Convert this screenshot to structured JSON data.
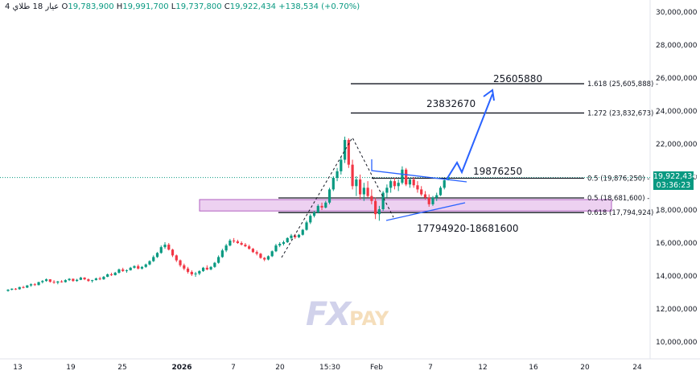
{
  "header": {
    "title": "4 عيار 18 طلاي",
    "open_label": "O",
    "open": "19,783,900",
    "high_label": "H",
    "high": "19,991,700",
    "low_label": "L",
    "low": "19,737,800",
    "close_label": "C",
    "close": "19,922,434",
    "change": "+138,534 (+0.70%)"
  },
  "price_tag": {
    "price": "19,922,434",
    "countdown": "03:36:23"
  },
  "watermark": {
    "fx": "FX",
    "pay": "PAY"
  },
  "colors": {
    "up": "#089981",
    "down": "#f23645",
    "projection": "#2962ff",
    "zone": "#e8c6ee",
    "zone_border": "#b05fc0"
  },
  "chart_data": {
    "type": "candlestick",
    "x_ticks": [
      "13",
      "19",
      "25",
      "2026",
      "7",
      "20",
      "15:30",
      "Feb",
      "7",
      "12",
      "16",
      "20",
      "24"
    ],
    "y_ticks": [
      "30,000,000",
      "28,000,000",
      "26,000,000",
      "24,000,000",
      "22,000,000",
      "20,000,000",
      "18,000,000",
      "16,000,000",
      "14,000,000",
      "12,000,000",
      "10,000,000"
    ],
    "ylim": [
      9000000,
      30500000
    ],
    "candles": [
      [
        13050000,
        13150000,
        13000000,
        13120000
      ],
      [
        13120000,
        13200000,
        13080000,
        13180000
      ],
      [
        13180000,
        13220000,
        13100000,
        13150000
      ],
      [
        13150000,
        13300000,
        13120000,
        13280000
      ],
      [
        13280000,
        13350000,
        13200000,
        13250000
      ],
      [
        13250000,
        13400000,
        13220000,
        13380000
      ],
      [
        13380000,
        13500000,
        13300000,
        13450000
      ],
      [
        13450000,
        13520000,
        13350000,
        13400000
      ],
      [
        13400000,
        13600000,
        13380000,
        13580000
      ],
      [
        13580000,
        13700000,
        13500000,
        13650000
      ],
      [
        13650000,
        13800000,
        13600000,
        13750000
      ],
      [
        13750000,
        13760000,
        13550000,
        13600000
      ],
      [
        13600000,
        13700000,
        13480000,
        13550000
      ],
      [
        13550000,
        13650000,
        13450000,
        13620000
      ],
      [
        13620000,
        13700000,
        13550000,
        13580000
      ],
      [
        13580000,
        13750000,
        13550000,
        13700000
      ],
      [
        13700000,
        13820000,
        13650000,
        13780000
      ],
      [
        13780000,
        13800000,
        13600000,
        13650000
      ],
      [
        13650000,
        13780000,
        13600000,
        13720000
      ],
      [
        13720000,
        13900000,
        13700000,
        13850000
      ],
      [
        13850000,
        13880000,
        13700000,
        13750000
      ],
      [
        13750000,
        13800000,
        13600000,
        13650000
      ],
      [
        13650000,
        13720000,
        13550000,
        13700000
      ],
      [
        13700000,
        13850000,
        13680000,
        13800000
      ],
      [
        13800000,
        13900000,
        13700000,
        13750000
      ],
      [
        13750000,
        13950000,
        13720000,
        13900000
      ],
      [
        13900000,
        14100000,
        13880000,
        14050000
      ],
      [
        14050000,
        14150000,
        13950000,
        14000000
      ],
      [
        14000000,
        14200000,
        13980000,
        14150000
      ],
      [
        14150000,
        14400000,
        14100000,
        14350000
      ],
      [
        14350000,
        14450000,
        14200000,
        14250000
      ],
      [
        14250000,
        14350000,
        14150000,
        14300000
      ],
      [
        14300000,
        14500000,
        14280000,
        14450000
      ],
      [
        14450000,
        14600000,
        14400000,
        14550000
      ],
      [
        14550000,
        14650000,
        14350000,
        14400000
      ],
      [
        14400000,
        14550000,
        14350000,
        14500000
      ],
      [
        14500000,
        14700000,
        14450000,
        14650000
      ],
      [
        14650000,
        14900000,
        14600000,
        14850000
      ],
      [
        14850000,
        15200000,
        14800000,
        15100000
      ],
      [
        15100000,
        15400000,
        15050000,
        15350000
      ],
      [
        15350000,
        15800000,
        15300000,
        15700000
      ],
      [
        15700000,
        16000000,
        15600000,
        15850000
      ],
      [
        15850000,
        15950000,
        15500000,
        15550000
      ],
      [
        15550000,
        15600000,
        15100000,
        15200000
      ],
      [
        15200000,
        15250000,
        14800000,
        14900000
      ],
      [
        14900000,
        14950000,
        14500000,
        14600000
      ],
      [
        14600000,
        14700000,
        14300000,
        14400000
      ],
      [
        14400000,
        14500000,
        14100000,
        14200000
      ],
      [
        14200000,
        14300000,
        13950000,
        14050000
      ],
      [
        14050000,
        14200000,
        13900000,
        14100000
      ],
      [
        14100000,
        14300000,
        14000000,
        14250000
      ],
      [
        14250000,
        14500000,
        14200000,
        14450000
      ],
      [
        14450000,
        14600000,
        14300000,
        14350000
      ],
      [
        14350000,
        14550000,
        14300000,
        14500000
      ],
      [
        14500000,
        14800000,
        14450000,
        14750000
      ],
      [
        14750000,
        15200000,
        14700000,
        15100000
      ],
      [
        15100000,
        15600000,
        15050000,
        15500000
      ],
      [
        15500000,
        15900000,
        15400000,
        15800000
      ],
      [
        15800000,
        16200000,
        15750000,
        16100000
      ],
      [
        16100000,
        16250000,
        15950000,
        16050000
      ],
      [
        16050000,
        16150000,
        15900000,
        15950000
      ],
      [
        15950000,
        16050000,
        15800000,
        15850000
      ],
      [
        15850000,
        15950000,
        15700000,
        15750000
      ],
      [
        15750000,
        15850000,
        15550000,
        15600000
      ],
      [
        15600000,
        15650000,
        15350000,
        15400000
      ],
      [
        15400000,
        15500000,
        15200000,
        15300000
      ],
      [
        15300000,
        15350000,
        15000000,
        15050000
      ],
      [
        15050000,
        15100000,
        14850000,
        14950000
      ],
      [
        14950000,
        15200000,
        14900000,
        15150000
      ],
      [
        15150000,
        15500000,
        15100000,
        15450000
      ],
      [
        15450000,
        15900000,
        15400000,
        15800000
      ],
      [
        15800000,
        16000000,
        15700000,
        15900000
      ],
      [
        15900000,
        16100000,
        15800000,
        16000000
      ],
      [
        16000000,
        16300000,
        15950000,
        16250000
      ],
      [
        16250000,
        16500000,
        16150000,
        16400000
      ],
      [
        16400000,
        16500000,
        16200000,
        16300000
      ],
      [
        16300000,
        16500000,
        16250000,
        16450000
      ],
      [
        16450000,
        16800000,
        16400000,
        16750000
      ],
      [
        16750000,
        17300000,
        16700000,
        17200000
      ],
      [
        17200000,
        17700000,
        17100000,
        17600000
      ],
      [
        17600000,
        17900000,
        17500000,
        17800000
      ],
      [
        17800000,
        18300000,
        17750000,
        18200000
      ],
      [
        18200000,
        18400000,
        17950000,
        18100000
      ],
      [
        18100000,
        18500000,
        18050000,
        18400000
      ],
      [
        18400000,
        19300000,
        18300000,
        19200000
      ],
      [
        19200000,
        20000000,
        19100000,
        19900000
      ],
      [
        19900000,
        20500000,
        19700000,
        20300000
      ],
      [
        20300000,
        21200000,
        20100000,
        21000000
      ],
      [
        21000000,
        22400000,
        20800000,
        22200000
      ],
      [
        22200000,
        22300000,
        20500000,
        20700000
      ],
      [
        20700000,
        21000000,
        19200000,
        19400000
      ],
      [
        19400000,
        20000000,
        18800000,
        19800000
      ],
      [
        19800000,
        20100000,
        18600000,
        18900000
      ],
      [
        18900000,
        19600000,
        18500000,
        19300000
      ],
      [
        19300000,
        19700000,
        18700000,
        18800000
      ],
      [
        18800000,
        19200000,
        18300000,
        18500000
      ],
      [
        18500000,
        18700000,
        17400000,
        17700000
      ],
      [
        17700000,
        18200000,
        17300000,
        18000000
      ],
      [
        18000000,
        19100000,
        17900000,
        19000000
      ],
      [
        19000000,
        19500000,
        18700000,
        19300000
      ],
      [
        19300000,
        19800000,
        19000000,
        19700000
      ],
      [
        19700000,
        19900000,
        19200000,
        19400000
      ],
      [
        19400000,
        19800000,
        19100000,
        19600000
      ],
      [
        19600000,
        20600000,
        19500000,
        20400000
      ],
      [
        20400000,
        20500000,
        19400000,
        19500000
      ],
      [
        19500000,
        19900000,
        19300000,
        19800000
      ],
      [
        19800000,
        19950000,
        19300000,
        19450000
      ],
      [
        19450000,
        19700000,
        19000000,
        19200000
      ],
      [
        19200000,
        19400000,
        18800000,
        18900000
      ],
      [
        18900000,
        19100000,
        18600000,
        18700000
      ],
      [
        18700000,
        18900000,
        18150000,
        18300000
      ],
      [
        18300000,
        18800000,
        18200000,
        18700000
      ],
      [
        18700000,
        19000000,
        18500000,
        18850000
      ],
      [
        18850000,
        19400000,
        18800000,
        19300000
      ],
      [
        19300000,
        19800000,
        19200000,
        19750000
      ],
      [
        19783900,
        19991700,
        19737800,
        19922434
      ]
    ],
    "horizontal_levels": [
      {
        "label": "1.618 (25,605,888)",
        "value": 25605888
      },
      {
        "label": "1.272 (23,832,673)",
        "value": 23832673
      },
      {
        "label": "0.5 (19,876,250)",
        "value": 19876250
      },
      {
        "label": "0.5 (18,681,600)",
        "value": 18681600
      },
      {
        "label": "0.618 (17,794,924)",
        "value": 17794924
      }
    ],
    "annotations": [
      "25605880",
      "23832670",
      "19876250",
      "17794920-18681600"
    ],
    "zone": {
      "low": 17794924,
      "high": 18681600
    }
  }
}
